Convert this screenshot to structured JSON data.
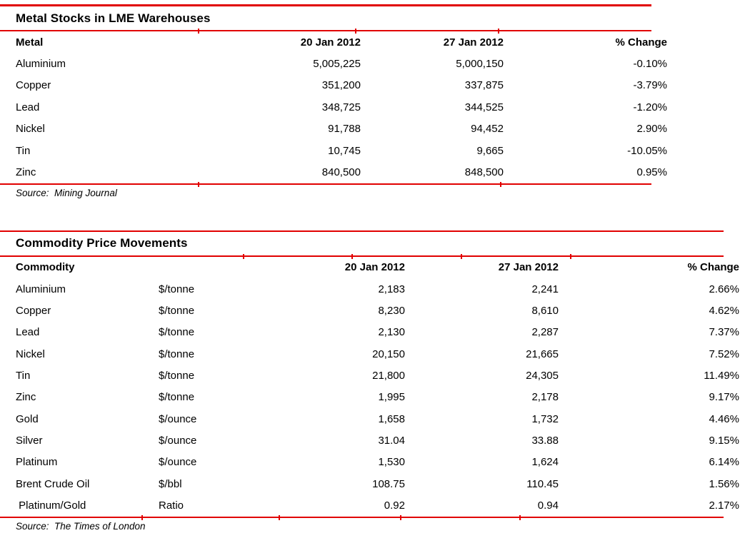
{
  "accent_color": "#e10000",
  "tables": [
    {
      "title": "Metal Stocks in LME Warehouses",
      "columns": [
        "Metal",
        "20 Jan 2012",
        "27 Jan 2012",
        "% Change"
      ],
      "rows": [
        [
          "Aluminium",
          "5,005,225",
          "5,000,150",
          "-0.10%"
        ],
        [
          "Copper",
          "351,200",
          "337,875",
          "-3.79%"
        ],
        [
          "Lead",
          "348,725",
          "344,525",
          "-1.20%"
        ],
        [
          "Nickel",
          "91,788",
          "94,452",
          "2.90%"
        ],
        [
          "Tin",
          "10,745",
          "9,665",
          "-10.05%"
        ],
        [
          "Zinc",
          "840,500",
          "848,500",
          "0.95%"
        ]
      ],
      "source": "Source:  Mining Journal"
    },
    {
      "title": "Commodity Price Movements",
      "columns": [
        "Commodity",
        "",
        "20 Jan 2012",
        "27 Jan 2012",
        "% Change"
      ],
      "rows": [
        [
          "Aluminium",
          "$/tonne",
          "2,183",
          "2,241",
          "2.66%"
        ],
        [
          "Copper",
          "$/tonne",
          "8,230",
          "8,610",
          "4.62%"
        ],
        [
          "Lead",
          "$/tonne",
          "2,130",
          "2,287",
          "7.37%"
        ],
        [
          "Nickel",
          "$/tonne",
          "20,150",
          "21,665",
          "7.52%"
        ],
        [
          "Tin",
          "$/tonne",
          "21,800",
          "24,305",
          "11.49%"
        ],
        [
          "Zinc",
          "$/tonne",
          "1,995",
          "2,178",
          "9.17%"
        ],
        [
          "Gold",
          "$/ounce",
          "1,658",
          "1,732",
          "4.46%"
        ],
        [
          "Silver",
          "$/ounce",
          "31.04",
          "33.88",
          "9.15%"
        ],
        [
          "Platinum",
          "$/ounce",
          "1,530",
          "1,624",
          "6.14%"
        ],
        [
          "Brent Crude Oil",
          "$/bbl",
          "108.75",
          "110.45",
          "1.56%"
        ],
        [
          " Platinum/Gold",
          "Ratio",
          "0.92",
          "0.94",
          "2.17%"
        ]
      ],
      "source": "Source:  The Times of London"
    }
  ]
}
